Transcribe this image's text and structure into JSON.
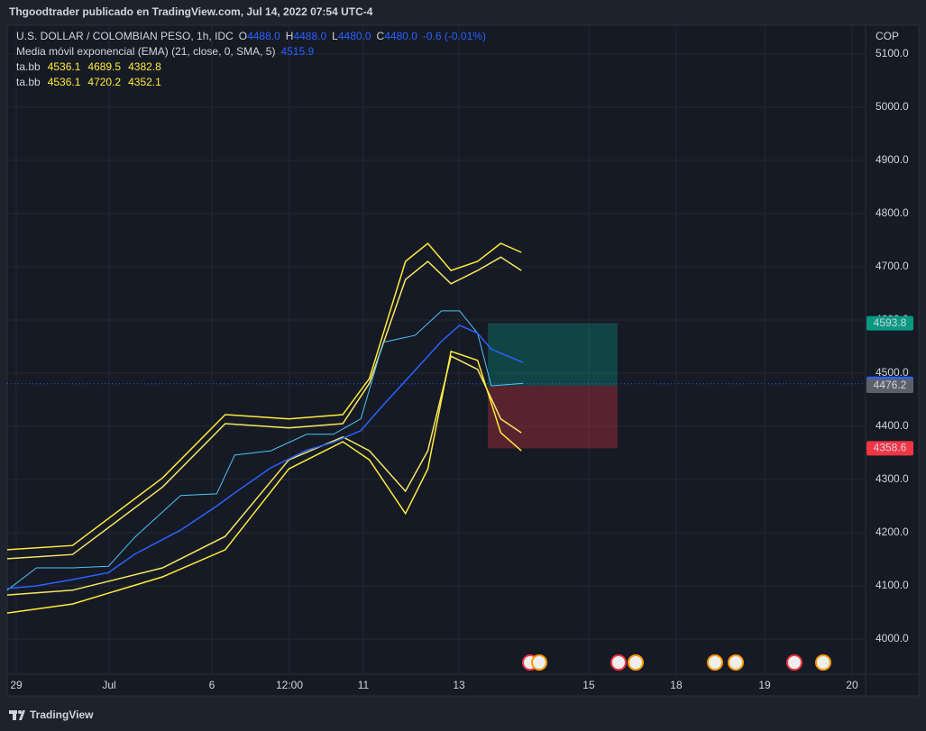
{
  "chart_data": {
    "type": "trading",
    "title": "Thgoodtrader publicado en TradingView.com, Jul 14, 2022 07:54 UTC-4",
    "symbol": "U.S. DOLLAR / COLOMBIAN PESO, 1h, IDC",
    "ohlc": [
      {
        "label": "O",
        "value": "4488.0"
      },
      {
        "label": "H",
        "value": "4488.0"
      },
      {
        "label": "L",
        "value": "4480.0"
      },
      {
        "label": "C",
        "value": "4480.0"
      }
    ],
    "change": "-0.6 (-0.01%)",
    "currency": "COP",
    "xlim": [
      0,
      100
    ],
    "ylim": [
      3934,
      5154
    ],
    "xticks": [
      {
        "value": 1.05,
        "label": "29"
      },
      {
        "value": 11.87,
        "label": "Jul"
      },
      {
        "value": 23.84,
        "label": "6"
      },
      {
        "value": 32.88,
        "label": "12:00"
      },
      {
        "value": 41.49,
        "label": "11"
      },
      {
        "value": 52.63,
        "label": "13"
      },
      {
        "value": 67.75,
        "label": "15"
      },
      {
        "value": 77.94,
        "label": "18"
      },
      {
        "value": 88.24,
        "label": "19"
      },
      {
        "value": 98.42,
        "label": "20"
      }
    ],
    "yticks": [
      {
        "value": 4000,
        "label": "4000.0"
      },
      {
        "value": 4100,
        "label": "4100.0"
      },
      {
        "value": 4200,
        "label": "4200.0"
      },
      {
        "value": 4300,
        "label": "4300.0"
      },
      {
        "value": 4400,
        "label": "4400.0"
      },
      {
        "value": 4500,
        "label": "4500.0"
      },
      {
        "value": 4600,
        "label": "4600.0"
      },
      {
        "value": 4700,
        "label": "4700.0"
      },
      {
        "value": 4800,
        "label": "4800.0"
      },
      {
        "value": 4900,
        "label": "4900.0"
      },
      {
        "value": 5000,
        "label": "5000.0"
      },
      {
        "value": 5100,
        "label": "5100.0"
      }
    ],
    "grid": true,
    "series": [
      {
        "name": "U.S. DOLLAR / COLOMBIAN PESO, 1h, IDC",
        "color": "#4fc3f7",
        "x": [
          0,
          3.4,
          7.6,
          11.8,
          14.9,
          20.2,
          24.4,
          26.5,
          30.7,
          34.9,
          38.0,
          41.2,
          43.8,
          47.5,
          50.6,
          52.7,
          54.8,
          56.4,
          60.1
        ],
        "values": [
          4092,
          4134,
          4134,
          4137,
          4192,
          4270,
          4273,
          4346,
          4354,
          4385,
          4385,
          4414,
          4558,
          4571,
          4617,
          4617,
          4575,
          4476,
          4481
        ]
      },
      {
        "name": "Media móvil exponencial (EMA) (21, close, 0, SMA, 5)",
        "color": "#2962ff",
        "last": "4515.9",
        "x": [
          0,
          3.4,
          7.6,
          11.8,
          14.9,
          20.2,
          24.4,
          26.5,
          30.7,
          34.9,
          38.0,
          41.2,
          43.8,
          47.5,
          50.6,
          52.7,
          54.8,
          56.4,
          60.1
        ],
        "values": [
          4095,
          4100,
          4112,
          4125,
          4160,
          4205,
          4250,
          4275,
          4322,
          4355,
          4370,
          4392,
          4440,
          4505,
          4560,
          4590,
          4575,
          4545,
          4520
        ]
      }
    ],
    "bands": [
      {
        "name": "ta.bb",
        "shown": [
          "4536.1",
          "4689.5",
          "4382.8"
        ],
        "color": "#f5e663",
        "x": [
          0,
          7.6,
          18.1,
          25.4,
          32.8,
          39.1,
          42.2,
          46.4,
          49.0,
          51.7,
          54.8,
          57.5,
          59.9
        ],
        "upper": [
          4151,
          4159,
          4286,
          4405,
          4397,
          4405,
          4481,
          4676,
          4710,
          4668,
          4693,
          4718,
          4693
        ],
        "lower": [
          4083,
          4092,
          4134,
          4193,
          4337,
          4380,
          4354,
          4278,
          4354,
          4532,
          4507,
          4414,
          4388
        ]
      },
      {
        "name": "ta.bb",
        "shown": [
          "4536.1",
          "4720.2",
          "4352.1"
        ],
        "color": "#ffeb3b",
        "x": [
          0,
          7.6,
          18.1,
          25.4,
          32.8,
          39.1,
          42.2,
          46.4,
          49.0,
          51.7,
          54.8,
          57.5,
          59.9
        ],
        "upper": [
          4168,
          4176,
          4303,
          4422,
          4414,
          4422,
          4490,
          4710,
          4744,
          4693,
          4710,
          4744,
          4727
        ],
        "lower": [
          4049,
          4066,
          4117,
          4168,
          4320,
          4371,
          4337,
          4236,
          4320,
          4541,
          4524,
          4388,
          4354
        ]
      }
    ],
    "position": {
      "x": [
        56.0,
        71.1
      ],
      "target": 4593.8,
      "entry": 4476.2,
      "stop": 4358.6
    },
    "last_price": 4480.0,
    "price_tags": [
      {
        "value": 4593.8,
        "label": "4593.8",
        "color": "#089981"
      },
      {
        "value": 4480.0,
        "label": "4480.0",
        "color": "#2962ff"
      },
      {
        "value": 4476.2,
        "label": "4476.2",
        "color": "#5d606b"
      },
      {
        "value": 4358.6,
        "label": "4358.6",
        "color": "#f23645"
      }
    ]
  },
  "footer": {
    "brand": "TradingView"
  }
}
